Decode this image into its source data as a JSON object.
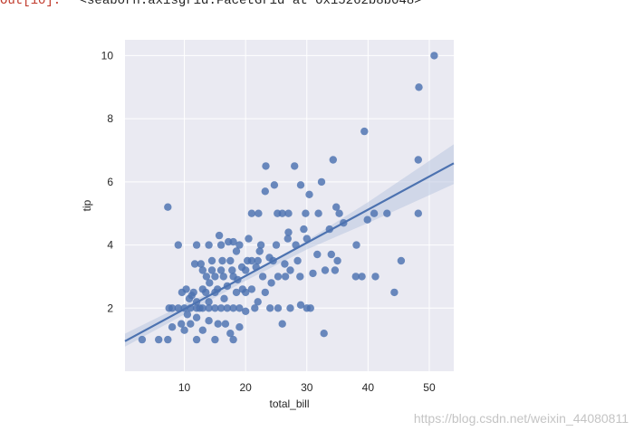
{
  "output": {
    "prompt": "Out[10]:",
    "repr": "<seaborn.axisgrid.FacetGrid at 0x15262b8b048>"
  },
  "watermark": "https://blog.csdn.net/weixin_44080811",
  "colors": {
    "plot_background": "#eaeaf2",
    "grid": "#ffffff",
    "points": "#4c72b0",
    "regression_line": "#4c72b0",
    "confidence_band": "#b9c6e0"
  },
  "chart_data": {
    "type": "scatter",
    "title": "",
    "xlabel": "total_bill",
    "ylabel": "tip",
    "xlim": [
      0.3,
      54
    ],
    "ylim": [
      0,
      10.5
    ],
    "xticks": [
      10,
      20,
      30,
      40,
      50
    ],
    "yticks": [
      2,
      4,
      6,
      8,
      10
    ],
    "grid": true,
    "regression": {
      "slope": 0.105,
      "intercept": 0.92,
      "ci": [
        [
          0.3,
          0.78,
          1.19
        ],
        [
          10,
          1.8,
          2.12
        ],
        [
          20,
          2.87,
          3.01
        ],
        [
          30,
          3.86,
          4.14
        ],
        [
          40,
          4.7,
          5.36
        ],
        [
          54,
          5.93,
          7.19
        ]
      ]
    },
    "points": [
      [
        3.1,
        1.0
      ],
      [
        5.8,
        1.0
      ],
      [
        7.3,
        1.0
      ],
      [
        7.3,
        5.2
      ],
      [
        9.0,
        4.0
      ],
      [
        50.8,
        10.0
      ],
      [
        48.3,
        9.0
      ],
      [
        39.4,
        7.6
      ],
      [
        48.2,
        6.7
      ],
      [
        34.3,
        6.7
      ],
      [
        28.0,
        6.5
      ],
      [
        23.3,
        6.5
      ],
      [
        32.4,
        6.0
      ],
      [
        29.0,
        5.9
      ],
      [
        24.7,
        5.9
      ],
      [
        30.4,
        5.6
      ],
      [
        23.2,
        5.7
      ],
      [
        34.8,
        5.2
      ],
      [
        25.2,
        5.0
      ],
      [
        26.0,
        5.0
      ],
      [
        27.0,
        5.0
      ],
      [
        29.8,
        5.0
      ],
      [
        31.9,
        5.0
      ],
      [
        35.3,
        5.0
      ],
      [
        48.2,
        5.0
      ],
      [
        39.9,
        4.8
      ],
      [
        41.0,
        5.0
      ],
      [
        43.1,
        5.0
      ],
      [
        36.0,
        4.7
      ],
      [
        21.0,
        5.0
      ],
      [
        22.1,
        5.0
      ],
      [
        33.7,
        4.5
      ],
      [
        30.0,
        4.2
      ],
      [
        26.9,
        4.2
      ],
      [
        20.5,
        4.2
      ],
      [
        18.0,
        4.1
      ],
      [
        17.2,
        4.1
      ],
      [
        38.1,
        4.0
      ],
      [
        28.2,
        4.0
      ],
      [
        25.0,
        4.0
      ],
      [
        22.5,
        4.0
      ],
      [
        19.0,
        4.0
      ],
      [
        16.0,
        4.0
      ],
      [
        14.0,
        4.0
      ],
      [
        12.0,
        4.0
      ],
      [
        15.7,
        4.3
      ],
      [
        23.9,
        3.6
      ],
      [
        20.3,
        3.5
      ],
      [
        22.0,
        3.5
      ],
      [
        24.5,
        3.5
      ],
      [
        17.5,
        3.5
      ],
      [
        26.4,
        3.4
      ],
      [
        14.5,
        3.5
      ],
      [
        12.7,
        3.4
      ],
      [
        33.0,
        3.2
      ],
      [
        45.4,
        3.5
      ],
      [
        35.0,
        3.5
      ],
      [
        34.6,
        3.2
      ],
      [
        28.9,
        3.0
      ],
      [
        27.3,
        3.2
      ],
      [
        38.0,
        3.0
      ],
      [
        39.0,
        3.0
      ],
      [
        41.2,
        3.0
      ],
      [
        31.0,
        3.1
      ],
      [
        25.3,
        3.0
      ],
      [
        22.8,
        3.0
      ],
      [
        18.0,
        3.0
      ],
      [
        16.4,
        3.0
      ],
      [
        15.0,
        3.0
      ],
      [
        13.6,
        3.0
      ],
      [
        21.7,
        3.3
      ],
      [
        19.4,
        3.3
      ],
      [
        17.8,
        3.2
      ],
      [
        20.0,
        3.2
      ],
      [
        16.0,
        3.2
      ],
      [
        18.7,
        2.9
      ],
      [
        14.1,
        2.8
      ],
      [
        15.4,
        2.6
      ],
      [
        13.0,
        2.6
      ],
      [
        11.2,
        2.4
      ],
      [
        10.3,
        2.6
      ],
      [
        12.0,
        2.2
      ],
      [
        23.2,
        2.5
      ],
      [
        22.0,
        2.2
      ],
      [
        27.3,
        2.0
      ],
      [
        30.0,
        2.0
      ],
      [
        30.6,
        2.0
      ],
      [
        29.0,
        2.1
      ],
      [
        24.0,
        2.0
      ],
      [
        25.3,
        2.0
      ],
      [
        26.0,
        1.5
      ],
      [
        20.0,
        2.5
      ],
      [
        18.5,
        2.5
      ],
      [
        16.5,
        2.3
      ],
      [
        14.0,
        2.2
      ],
      [
        8.0,
        2.0
      ],
      [
        9.0,
        2.0
      ],
      [
        10.0,
        2.0
      ],
      [
        11.0,
        2.0
      ],
      [
        12.0,
        2.0
      ],
      [
        13.0,
        2.0
      ],
      [
        14.0,
        2.0
      ],
      [
        15.0,
        2.0
      ],
      [
        16.0,
        2.0
      ],
      [
        17.0,
        2.0
      ],
      [
        18.0,
        2.0
      ],
      [
        19.0,
        2.0
      ],
      [
        20.0,
        1.9
      ],
      [
        21.5,
        2.0
      ],
      [
        10.5,
        1.8
      ],
      [
        12.0,
        1.7
      ],
      [
        14.0,
        1.6
      ],
      [
        15.5,
        1.5
      ],
      [
        16.7,
        1.5
      ],
      [
        9.5,
        1.5
      ],
      [
        10.0,
        1.3
      ],
      [
        8.0,
        1.4
      ],
      [
        11.0,
        1.5
      ],
      [
        17.5,
        1.2
      ],
      [
        13.0,
        1.3
      ],
      [
        12.0,
        1.0
      ],
      [
        15.0,
        1.0
      ],
      [
        18.0,
        1.0
      ],
      [
        19.0,
        1.4
      ],
      [
        32.8,
        1.2
      ],
      [
        7.5,
        2.0
      ],
      [
        9.6,
        2.5
      ],
      [
        11.5,
        2.5
      ],
      [
        13.5,
        2.5
      ],
      [
        15.0,
        2.5
      ],
      [
        17.0,
        2.7
      ],
      [
        19.5,
        2.6
      ],
      [
        21.0,
        2.6
      ],
      [
        24.2,
        2.8
      ],
      [
        26.5,
        3.0
      ],
      [
        28.5,
        3.5
      ],
      [
        31.7,
        3.7
      ],
      [
        34.0,
        3.7
      ],
      [
        27.0,
        4.4
      ],
      [
        29.5,
        4.5
      ],
      [
        22.3,
        3.8
      ],
      [
        21.0,
        3.5
      ],
      [
        18.5,
        3.8
      ],
      [
        16.2,
        3.5
      ],
      [
        14.5,
        3.2
      ],
      [
        13.0,
        3.2
      ],
      [
        11.7,
        3.4
      ],
      [
        12.5,
        2.0
      ],
      [
        10.8,
        2.3
      ],
      [
        44.3,
        2.5
      ]
    ]
  }
}
